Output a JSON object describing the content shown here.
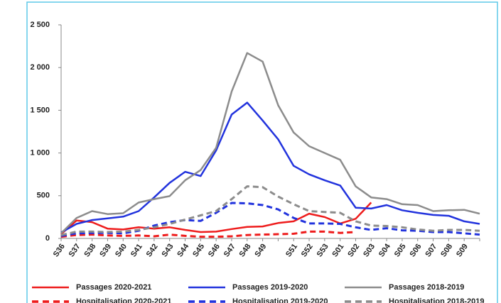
{
  "chart_data": {
    "type": "line",
    "categories": [
      "S36",
      "S37",
      "S38",
      "S39",
      "S40",
      "S41",
      "S42",
      "S43",
      "S44",
      "S45",
      "S46",
      "S47",
      "S48",
      "S49",
      null,
      "S51",
      "S52",
      "S53",
      "S01",
      "S02",
      "S03",
      "S04",
      "S05",
      "S06",
      "S07",
      "S08",
      "S09",
      null
    ],
    "ylim": [
      0,
      2500
    ],
    "yticks": [
      0,
      500,
      {
        "value": 1000,
        "label": "1 000"
      },
      {
        "value": 1500,
        "label": "1 500"
      },
      {
        "value": 2000,
        "label": "2 000"
      },
      {
        "value": 2500,
        "label": "2 500"
      }
    ],
    "series": [
      {
        "name": "Passages 2020-2021",
        "color": "#ee1c1c",
        "dashed": false,
        "values": [
          50,
          210,
          190,
          115,
          105,
          130,
          115,
          130,
          100,
          75,
          80,
          110,
          135,
          140,
          180,
          200,
          290,
          250,
          175,
          230,
          420,
          null,
          null,
          null,
          null,
          null,
          null,
          null
        ]
      },
      {
        "name": "Passages 2019-2020",
        "color": "#2233dd",
        "dashed": false,
        "values": [
          70,
          170,
          215,
          235,
          255,
          320,
          480,
          650,
          780,
          730,
          1030,
          1450,
          1590,
          1380,
          1160,
          850,
          750,
          680,
          620,
          360,
          350,
          390,
          330,
          300,
          275,
          265,
          200,
          170
        ]
      },
      {
        "name": "Passages 2018-2019",
        "color": "#8c8c8c",
        "dashed": false,
        "values": [
          60,
          240,
          320,
          285,
          295,
          420,
          460,
          495,
          680,
          800,
          1060,
          1720,
          2170,
          2070,
          1560,
          1240,
          1080,
          1000,
          920,
          610,
          480,
          460,
          400,
          390,
          320,
          330,
          335,
          290
        ]
      },
      {
        "name": "Hospitalisation 2020-2021",
        "color": "#ee1c1c",
        "dashed": true,
        "values": [
          20,
          40,
          45,
          35,
          30,
          35,
          25,
          45,
          30,
          20,
          20,
          25,
          40,
          45,
          50,
          55,
          80,
          80,
          65,
          75,
          null,
          null,
          null,
          null,
          null,
          null,
          null,
          null
        ]
      },
      {
        "name": "Hospitalisation 2019-2020",
        "color": "#2233dd",
        "dashed": true,
        "values": [
          30,
          60,
          65,
          65,
          60,
          90,
          150,
          190,
          215,
          205,
          300,
          415,
          410,
          390,
          340,
          240,
          175,
          175,
          170,
          130,
          100,
          120,
          95,
          90,
          75,
          75,
          60,
          45
        ]
      },
      {
        "name": "Hospitalisation 2018-2019",
        "color": "#8c8c8c",
        "dashed": true,
        "values": [
          40,
          80,
          80,
          75,
          80,
          100,
          130,
          170,
          220,
          270,
          320,
          460,
          610,
          600,
          490,
          400,
          320,
          310,
          300,
          200,
          150,
          145,
          130,
          105,
          90,
          100,
          100,
          90
        ]
      }
    ]
  }
}
